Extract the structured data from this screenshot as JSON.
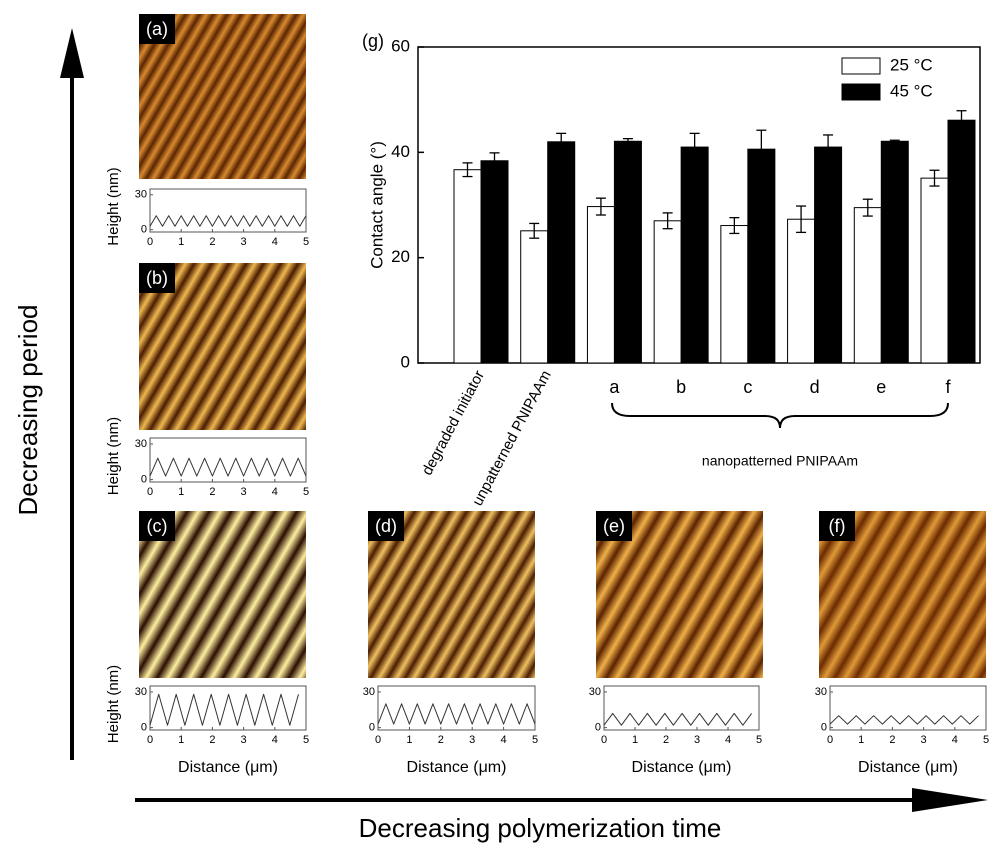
{
  "chart_data": [
    {
      "type": "bar",
      "panel": "(g)",
      "ylabel": "Contact angle (°)",
      "categories": [
        "degraded initiator",
        "unpatterned PNIPAAm",
        "a",
        "b",
        "c",
        "d",
        "e",
        "f"
      ],
      "group_label": "nanopatterned PNIPAAm",
      "series": [
        {
          "name": "25 °C",
          "color": "#ffffff",
          "values": [
            36.7,
            25.1,
            29.7,
            27.0,
            26.1,
            27.3,
            29.5,
            35.1
          ],
          "errors": [
            1.3,
            1.4,
            1.6,
            1.5,
            1.5,
            2.5,
            1.6,
            1.5
          ]
        },
        {
          "name": "45 °C",
          "color": "#000000",
          "values": [
            38.4,
            42.0,
            42.1,
            41.0,
            40.6,
            41.0,
            42.1,
            46.1
          ],
          "errors": [
            1.5,
            1.6,
            0.5,
            2.6,
            3.6,
            2.3,
            0.2,
            1.8
          ]
        }
      ],
      "ylim": [
        0,
        60
      ],
      "yticks": [
        0,
        20,
        40,
        60
      ],
      "legend": "upper right"
    },
    {
      "type": "line",
      "panel": "(a)",
      "ylabel": "Height (nm)",
      "x": [
        0,
        0.2,
        0.4,
        0.6,
        0.8,
        1,
        1.2,
        1.4,
        1.6,
        1.8,
        2,
        2.2,
        2.4,
        2.6,
        2.8,
        3,
        3.2,
        3.4,
        3.6,
        3.8,
        4,
        4.2,
        4.4,
        4.6,
        4.8,
        5
      ],
      "series": [
        {
          "color": "#333333",
          "values": [
            3,
            12,
            3,
            12,
            3,
            12,
            3,
            12,
            3,
            12,
            3,
            12,
            3,
            12,
            3,
            12,
            3,
            12,
            3,
            12,
            3,
            12,
            3,
            12,
            3,
            12
          ]
        }
      ],
      "xlim": [
        0,
        5
      ],
      "ylim": [
        -2,
        35
      ],
      "xticks": [
        0,
        1,
        2,
        3,
        4,
        5
      ],
      "yticks": [
        0,
        30
      ]
    },
    {
      "type": "line",
      "panel": "(b)",
      "ylabel": "Height (nm)",
      "x": [
        0,
        0.25,
        0.5,
        0.75,
        1,
        1.25,
        1.5,
        1.75,
        2,
        2.25,
        2.5,
        2.75,
        3,
        3.25,
        3.5,
        3.75,
        4,
        4.25,
        4.5,
        4.75,
        5
      ],
      "series": [
        {
          "color": "#333333",
          "values": [
            3,
            18,
            3,
            18,
            3,
            18,
            3,
            18,
            3,
            18,
            3,
            18,
            3,
            18,
            3,
            18,
            3,
            18,
            3,
            18,
            3
          ]
        }
      ],
      "xlim": [
        0,
        5
      ],
      "ylim": [
        -2,
        35
      ],
      "xticks": [
        0,
        1,
        2,
        3,
        4,
        5
      ],
      "yticks": [
        0,
        30
      ]
    },
    {
      "type": "line",
      "panel": "(c)",
      "ylabel": "Height (nm)",
      "xlabel": "Distance (μm)",
      "x": [
        0,
        0.28,
        0.56,
        0.84,
        1.12,
        1.4,
        1.68,
        1.96,
        2.24,
        2.52,
        2.8,
        3.08,
        3.36,
        3.64,
        3.92,
        4.2,
        4.48,
        4.76
      ],
      "series": [
        {
          "color": "#333333",
          "values": [
            2,
            28,
            2,
            28,
            2,
            28,
            2,
            28,
            2,
            28,
            2,
            28,
            2,
            28,
            2,
            28,
            2,
            28
          ]
        }
      ],
      "xlim": [
        0,
        5
      ],
      "ylim": [
        -2,
        35
      ],
      "xticks": [
        0,
        1,
        2,
        3,
        4,
        5
      ],
      "yticks": [
        0,
        30
      ]
    },
    {
      "type": "line",
      "panel": "(d)",
      "xlabel": "Distance (μm)",
      "x": [
        0,
        0.25,
        0.5,
        0.75,
        1,
        1.25,
        1.5,
        1.75,
        2,
        2.25,
        2.5,
        2.75,
        3,
        3.25,
        3.5,
        3.75,
        4,
        4.25,
        4.5,
        4.75,
        5
      ],
      "series": [
        {
          "color": "#333333",
          "values": [
            3,
            20,
            3,
            20,
            3,
            20,
            3,
            20,
            3,
            20,
            3,
            20,
            3,
            20,
            3,
            20,
            3,
            20,
            3,
            20,
            3
          ]
        }
      ],
      "xlim": [
        0,
        5
      ],
      "ylim": [
        -2,
        35
      ],
      "xticks": [
        0,
        1,
        2,
        3,
        4,
        5
      ],
      "yticks": [
        0,
        30
      ]
    },
    {
      "type": "line",
      "panel": "(e)",
      "xlabel": "Distance (μm)",
      "x": [
        0,
        0.28,
        0.56,
        0.84,
        1.12,
        1.4,
        1.68,
        1.96,
        2.24,
        2.52,
        2.8,
        3.08,
        3.36,
        3.64,
        3.92,
        4.2,
        4.48,
        4.76
      ],
      "series": [
        {
          "color": "#333333",
          "values": [
            2,
            12,
            2,
            12,
            2,
            12,
            2,
            12,
            2,
            12,
            2,
            12,
            2,
            12,
            2,
            12,
            2,
            12
          ]
        }
      ],
      "xlim": [
        0,
        5
      ],
      "ylim": [
        -2,
        35
      ],
      "xticks": [
        0,
        1,
        2,
        3,
        4,
        5
      ],
      "yticks": [
        0,
        30
      ]
    },
    {
      "type": "line",
      "panel": "(f)",
      "xlabel": "Distance (μm)",
      "x": [
        0,
        0.28,
        0.56,
        0.84,
        1.12,
        1.4,
        1.68,
        1.96,
        2.24,
        2.52,
        2.8,
        3.08,
        3.36,
        3.64,
        3.92,
        4.2,
        4.48,
        4.76
      ],
      "series": [
        {
          "color": "#333333",
          "values": [
            3,
            10,
            3,
            10,
            3,
            10,
            3,
            10,
            3,
            10,
            3,
            10,
            3,
            10,
            3,
            10,
            3,
            10
          ]
        }
      ],
      "xlim": [
        0,
        5
      ],
      "ylim": [
        -2,
        35
      ],
      "xticks": [
        0,
        1,
        2,
        3,
        4,
        5
      ],
      "yticks": [
        0,
        30
      ]
    }
  ],
  "arrows": {
    "vertical": "Decreasing period",
    "horizontal": "Decreasing polymerization time"
  }
}
